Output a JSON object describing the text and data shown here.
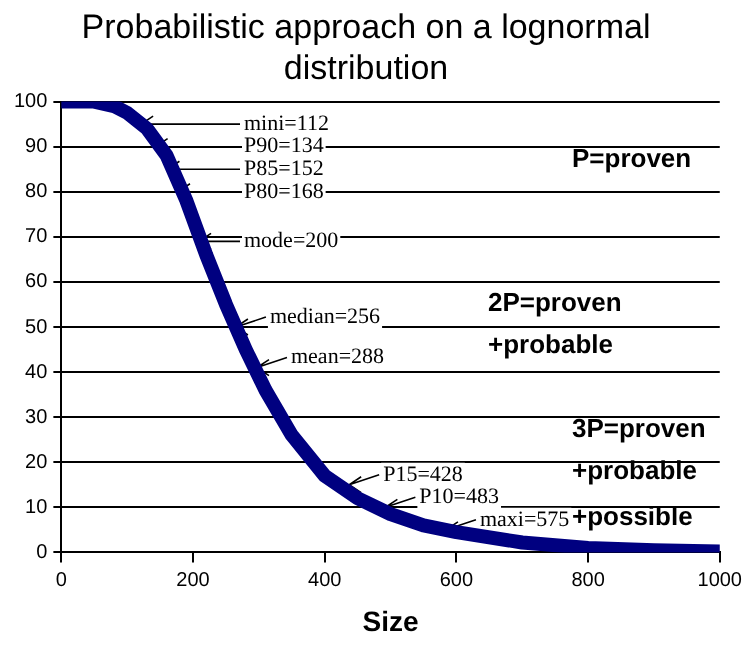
{
  "chart_data": {
    "type": "line",
    "title": "Probabilistic approach on a lognormal distribution",
    "xlabel": "Size",
    "x": [
      0,
      50,
      80,
      100,
      130,
      160,
      190,
      220,
      250,
      280,
      310,
      350,
      400,
      450,
      500,
      550,
      600,
      700,
      800,
      900,
      1000
    ],
    "series": [
      {
        "color": "#000080",
        "values": [
          100,
          100,
          99,
          97.5,
          94,
          88,
          78,
          66,
          55,
          45,
          36,
          26,
          17,
          12,
          8.5,
          6,
          4.5,
          2.2,
          1,
          0.5,
          0.2
        ]
      }
    ],
    "xlim": [
      0,
      1000
    ],
    "xticks": [
      0,
      200,
      400,
      600,
      800,
      1000
    ],
    "ylim": [
      0,
      100
    ],
    "yticks": [
      0,
      10,
      20,
      30,
      40,
      50,
      60,
      70,
      80,
      90,
      100
    ],
    "grid": "y",
    "legend": false,
    "marker": "none",
    "annotations": [
      {
        "text": "mini=112",
        "x": 112,
        "y": 95
      },
      {
        "text": "P90=134",
        "x": 134,
        "y": 90
      },
      {
        "text": "P85=152",
        "x": 152,
        "y": 85
      },
      {
        "text": "P80=168",
        "x": 168,
        "y": 80
      },
      {
        "text": "mode=200",
        "x": 200,
        "y": 69
      },
      {
        "text": "median=256",
        "x": 256,
        "y": 50
      },
      {
        "text": "mean=288",
        "x": 288,
        "y": 41
      },
      {
        "text": "P15=428",
        "x": 428,
        "y": 15
      },
      {
        "text": "P10=483",
        "x": 483,
        "y": 10
      },
      {
        "text": "maxi=575",
        "x": 575,
        "y": 5
      },
      "P=proven",
      "2P=proven",
      "+probable",
      "3P=proven",
      "+probable",
      "+possible"
    ]
  }
}
